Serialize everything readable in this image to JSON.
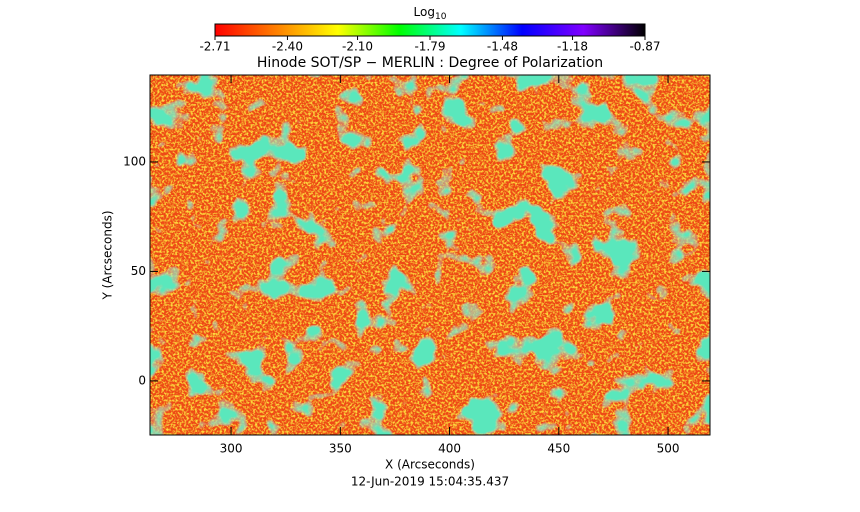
{
  "chart_data": {
    "type": "image",
    "title": "Hinode SOT/SP − MERLIN : Degree of Polarization",
    "x_label": "X (Arcseconds)",
    "y_label": "Y (Arcseconds)",
    "date": "12-Jun-2019 15:04:35.437",
    "colorbar_label": "Log",
    "colorbar_label_subscript": "10",
    "colormap": [
      "#ff0000",
      "#ff8000",
      "#ffff00",
      "#00ff00",
      "#00ffff",
      "#0000ff",
      "#8000ff",
      "#000000"
    ],
    "clim": [
      -2.71,
      -0.87
    ],
    "cticks": [
      -2.71,
      {
        "value": -2.4,
        "label": "-2.40"
      },
      {
        "value": -2.1,
        "label": "-2.10"
      },
      -1.79,
      -1.48,
      -1.18,
      -0.87
    ],
    "xlim": [
      262.9,
      519.2
    ],
    "xticks": [
      300,
      350,
      400,
      450,
      500
    ],
    "ylim": [
      -24.7,
      139.7
    ],
    "yticks": [
      0,
      50,
      100
    ]
  }
}
